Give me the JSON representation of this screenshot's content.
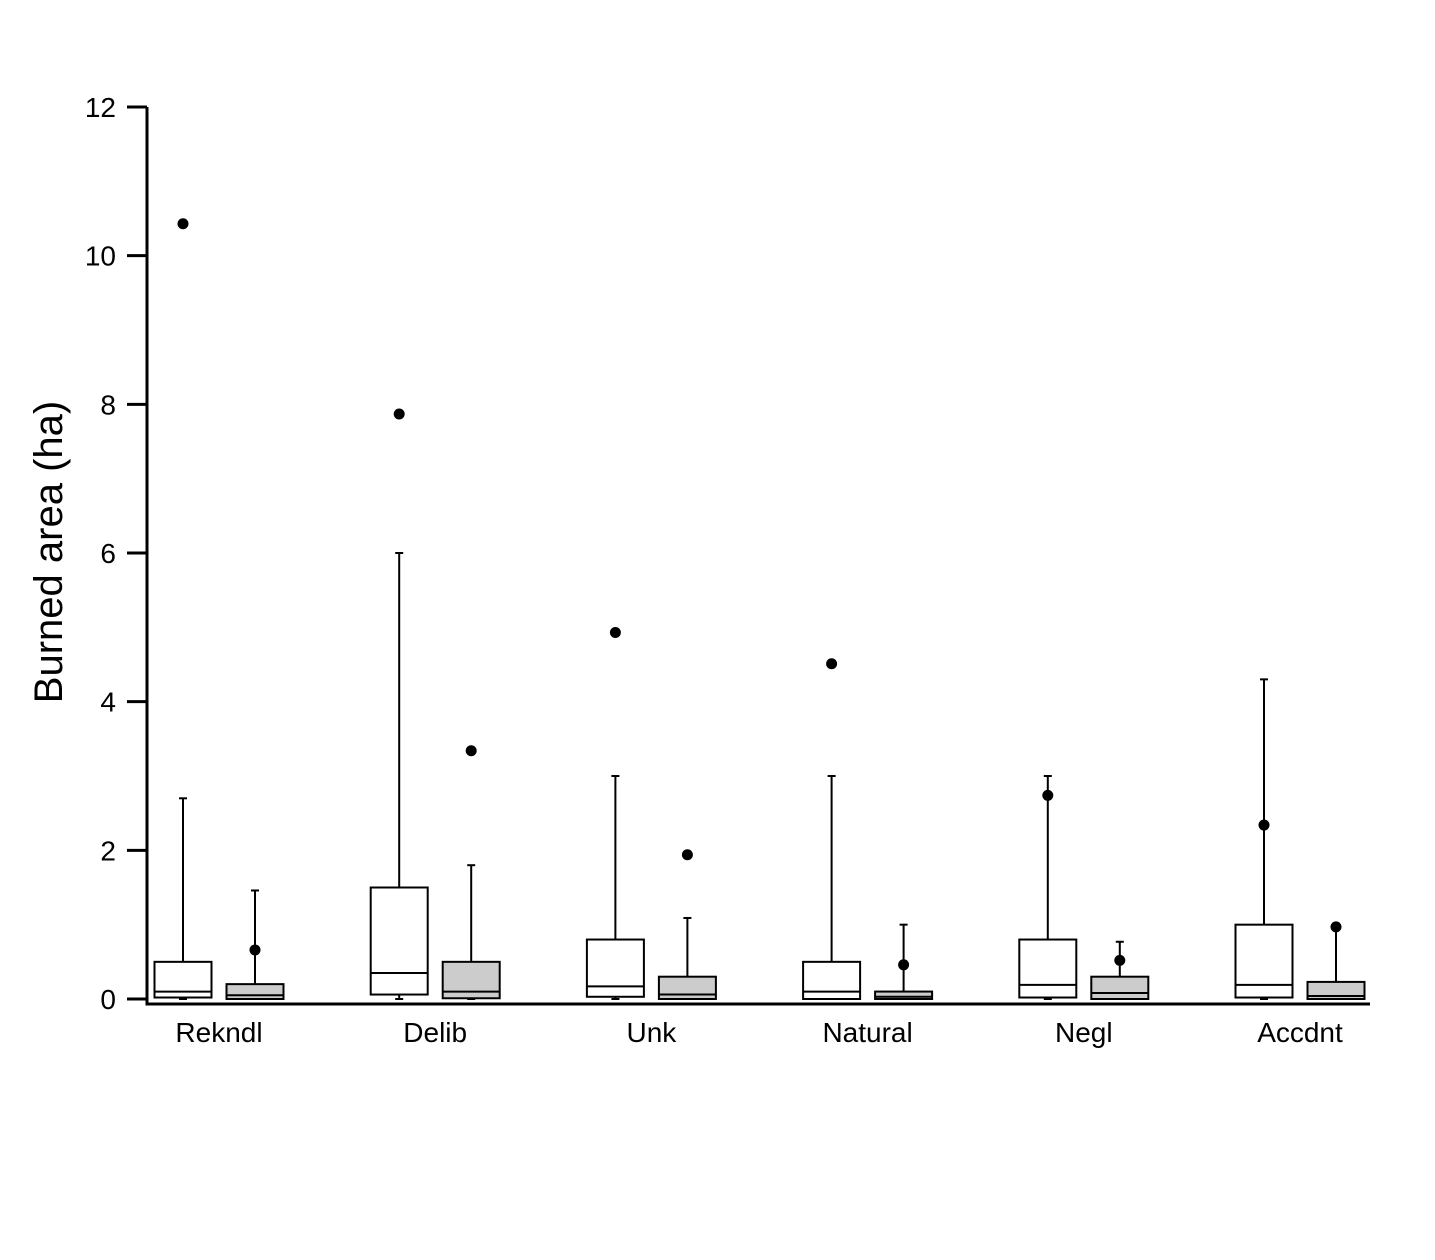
{
  "chart_data": {
    "type": "boxplot",
    "title": "",
    "xlabel": "",
    "ylabel": "Burned area (ha)",
    "ylim": [
      0,
      12
    ],
    "yticks": [
      0,
      2,
      4,
      6,
      8,
      10,
      12
    ],
    "grid": false,
    "legend": "none",
    "categories": [
      "Rekndl",
      "Delib",
      "Unk",
      "Natural",
      "Negl",
      "Accdnt"
    ],
    "series": [
      {
        "fill": "#ffffff",
        "boxes": [
          {
            "min": 0,
            "q1": 0.02,
            "median": 0.1,
            "q3": 0.5,
            "max": 2.7,
            "mean": 10.43
          },
          {
            "min": 0,
            "q1": 0.06,
            "median": 0.35,
            "q3": 1.5,
            "max": 6.0,
            "mean": 7.87
          },
          {
            "min": 0,
            "q1": 0.03,
            "median": 0.17,
            "q3": 0.8,
            "max": 3.0,
            "mean": 4.93
          },
          {
            "min": 0,
            "q1": 0.0,
            "median": 0.1,
            "q3": 0.5,
            "max": 3.0,
            "mean": 4.51
          },
          {
            "min": 0,
            "q1": 0.02,
            "median": 0.19,
            "q3": 0.8,
            "max": 3.0,
            "mean": 2.74
          },
          {
            "min": 0,
            "q1": 0.02,
            "median": 0.19,
            "q3": 1.0,
            "max": 4.3,
            "mean": 2.34
          }
        ]
      },
      {
        "fill": "#cccccc",
        "boxes": [
          {
            "min": 0,
            "q1": 0.0,
            "median": 0.05,
            "q3": 0.2,
            "max": 1.46,
            "mean": 0.66
          },
          {
            "min": 0,
            "q1": 0.01,
            "median": 0.1,
            "q3": 0.5,
            "max": 1.8,
            "mean": 3.34
          },
          {
            "min": 0,
            "q1": 0.0,
            "median": 0.06,
            "q3": 0.3,
            "max": 1.09,
            "mean": 1.94
          },
          {
            "min": 0,
            "q1": 0.0,
            "median": 0.03,
            "q3": 0.1,
            "max": 1.0,
            "mean": 0.46
          },
          {
            "min": 0,
            "q1": 0.0,
            "median": 0.08,
            "q3": 0.3,
            "max": 0.77,
            "mean": 0.52
          },
          {
            "min": 0,
            "q1": 0.0,
            "median": 0.04,
            "q3": 0.23,
            "max": 0.95,
            "mean": 0.97
          }
        ]
      }
    ]
  }
}
